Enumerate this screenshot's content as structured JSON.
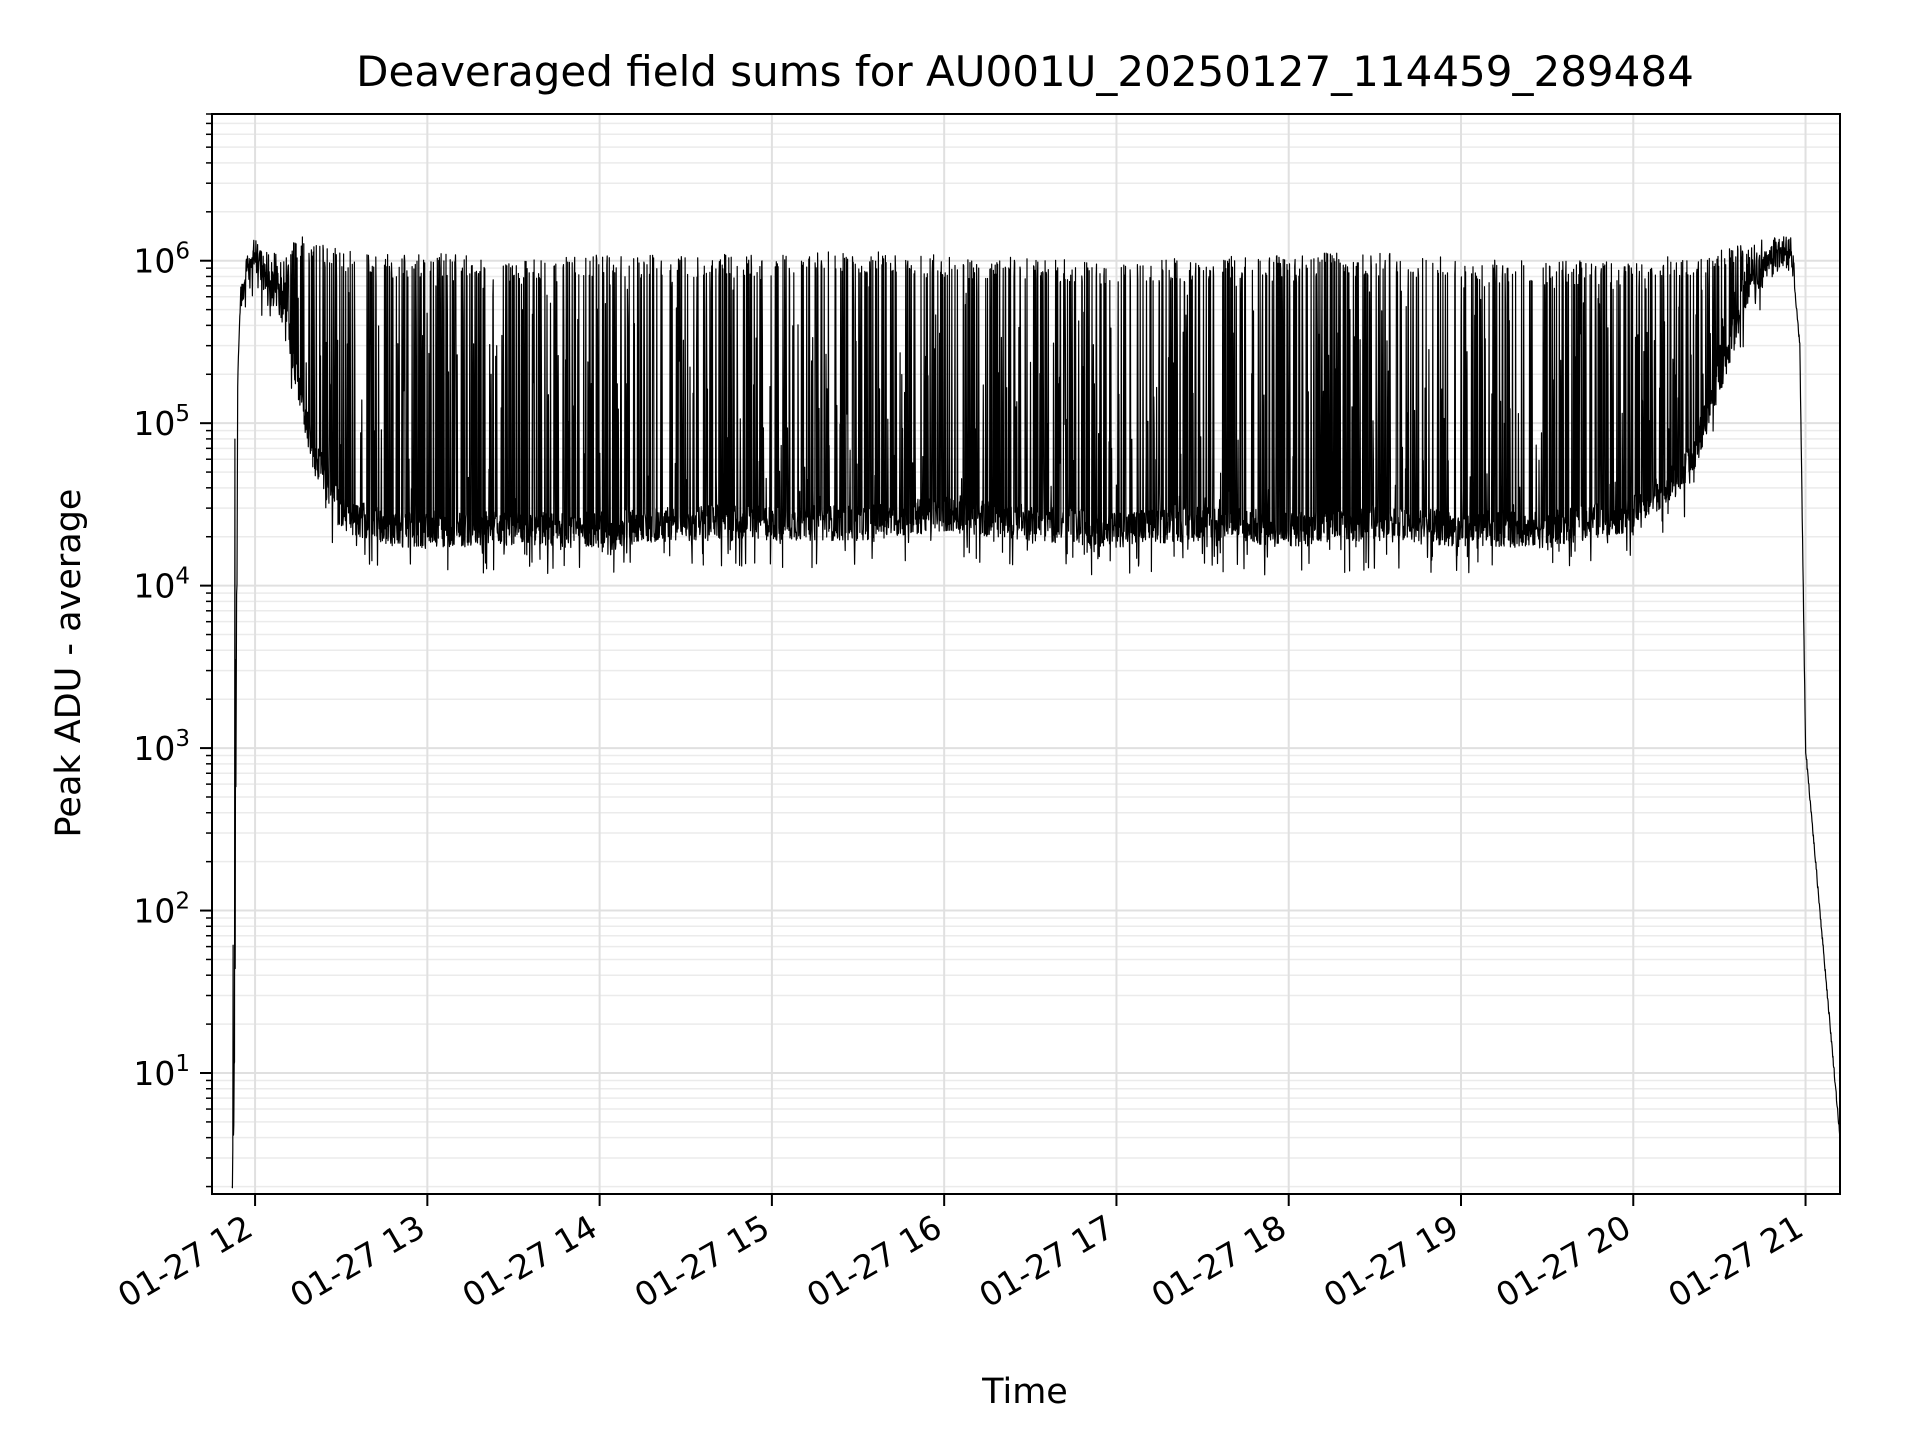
{
  "chart_data": {
    "type": "line",
    "title": "Deaveraged field sums for AU001U_20250127_114459_289484",
    "xlabel": "Time",
    "ylabel": "Peak ADU - average",
    "yscale": "log",
    "ylim": [
      1.8,
      8000000
    ],
    "xlim": [
      "2025-01-27 11:45",
      "2025-01-27 21:12"
    ],
    "grid": true,
    "x_ticks": [
      "01-27 12",
      "01-27 13",
      "01-27 14",
      "01-27 15",
      "01-27 16",
      "01-27 17",
      "01-27 18",
      "01-27 19",
      "01-27 20",
      "01-27 21"
    ],
    "y_ticks": [
      {
        "base": "10",
        "exp": "1",
        "value": 10
      },
      {
        "base": "10",
        "exp": "2",
        "value": 100
      },
      {
        "base": "10",
        "exp": "3",
        "value": 1000
      },
      {
        "base": "10",
        "exp": "4",
        "value": 10000
      },
      {
        "base": "10",
        "exp": "5",
        "value": 100000
      },
      {
        "base": "10",
        "exp": "6",
        "value": 1000000
      }
    ],
    "series": [
      {
        "line_color": "#000000",
        "x": [
          "2025-01-27 11:52",
          "2025-01-27 11:53",
          "2025-01-27 11:54",
          "2025-01-27 11:55",
          "2025-01-27 11:57",
          "2025-01-27 11:58",
          "2025-01-27 12:00",
          "2025-01-27 12:05",
          "2025-01-27 12:10",
          "2025-01-27 12:15",
          "2025-01-27 12:20",
          "2025-01-27 12:30",
          "2025-01-27 12:40",
          "2025-01-27 12:50",
          "2025-01-27 13:00",
          "2025-01-27 13:30",
          "2025-01-27 14:00",
          "2025-01-27 14:30",
          "2025-01-27 15:00",
          "2025-01-27 15:30",
          "2025-01-27 16:00",
          "2025-01-27 16:30",
          "2025-01-27 17:00",
          "2025-01-27 17:30",
          "2025-01-27 18:00",
          "2025-01-27 18:30",
          "2025-01-27 19:00",
          "2025-01-27 19:30",
          "2025-01-27 20:00",
          "2025-01-27 20:20",
          "2025-01-27 20:40",
          "2025-01-27 20:50",
          "2025-01-27 20:55",
          "2025-01-27 20:58",
          "2025-01-27 21:00",
          "2025-01-27 21:12"
        ],
        "y_upper": [
          2,
          140000,
          200000,
          600000,
          900000,
          1100000,
          1200000,
          1300000,
          1000000,
          1500000,
          1300000,
          1200000,
          1100000,
          1100000,
          1150000,
          1000000,
          1100000,
          1100000,
          1100000,
          1150000,
          1100000,
          1050000,
          1000000,
          1050000,
          1100000,
          1150000,
          1050000,
          1000000,
          1000000,
          1100000,
          1300000,
          1400000,
          1200000,
          300000,
          1000,
          4
        ],
        "y_lower": [
          2,
          17,
          200000,
          500000,
          800000,
          900000,
          1000000,
          600000,
          500000,
          150000,
          60000,
          25000,
          22000,
          20000,
          20000,
          20000,
          20000,
          22000,
          22000,
          22000,
          25000,
          22000,
          20000,
          22000,
          20000,
          22000,
          20000,
          20000,
          25000,
          50000,
          600000,
          1000000,
          1000000,
          300000,
          1000,
          4
        ]
      }
    ]
  }
}
